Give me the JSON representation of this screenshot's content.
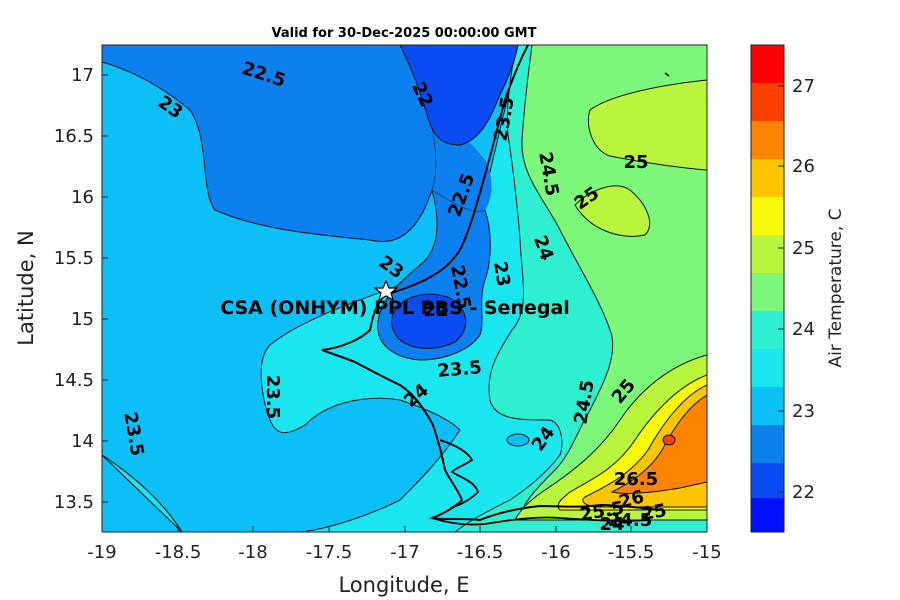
{
  "title": "Valid for 30-Dec-2025 00:00:00 GMT",
  "x_axis_label": "Longitude, E",
  "y_axis_label": "Latitude, N",
  "colorbar_label": "Air Temperature, C",
  "station_label": "CSA (ONHYM) PPL PBS - Senegal",
  "x_ticks": [
    "-19",
    "-18.5",
    "-18",
    "-17.5",
    "-17",
    "-16.5",
    "-16",
    "-15.5",
    "-15"
  ],
  "y_ticks": [
    "17",
    "16.5",
    "16",
    "15.5",
    "15",
    "14.5",
    "14",
    "13.5"
  ],
  "colorbar_ticks": [
    "27",
    "26",
    "25",
    "24",
    "23",
    "22"
  ],
  "colors": {
    "c21_5": "#0010ff",
    "c22": "#0a4cf2",
    "c22_5": "#0b80ee",
    "c23": "#0cc0f7",
    "c23_5": "#1ae6f0",
    "c24": "#2ef0d0",
    "c24_5": "#7cf77a",
    "c25": "#b9f53d",
    "c25_5": "#f7f80c",
    "c26": "#fbc500",
    "c26_5": "#fc8400",
    "c27": "#fb4000",
    "c27_5": "#ff0000"
  },
  "chart_data": {
    "type": "heatmap",
    "title": "Valid for 30-Dec-2025 00:00:00 GMT",
    "xlabel": "Longitude, E",
    "ylabel": "Latitude, N",
    "xlim": [
      -19,
      -15
    ],
    "ylim": [
      13.25,
      17.25
    ],
    "colorbar": {
      "label": "Air Temperature, C",
      "range": [
        21.5,
        27.5
      ],
      "step": 0.5
    },
    "contour_labels": [
      {
        "text": "22.5",
        "lon": -18.05,
        "lat": 16.95
      },
      {
        "text": "23",
        "lon": -18.6,
        "lat": 16.72
      },
      {
        "text": "22",
        "lon": -16.9,
        "lat": 16.82
      },
      {
        "text": "23.5",
        "lon": -16.28,
        "lat": 16.72
      },
      {
        "text": "25",
        "lon": -15.48,
        "lat": 16.3
      },
      {
        "text": "24.5",
        "lon": -16.1,
        "lat": 16.18
      },
      {
        "text": "25",
        "lon": -15.76,
        "lat": 16.0
      },
      {
        "text": "22.5",
        "lon": -16.57,
        "lat": 15.98
      },
      {
        "text": "24",
        "lon": -16.1,
        "lat": 15.57
      },
      {
        "text": "23",
        "lon": -17.28,
        "lat": 15.42
      },
      {
        "text": "23",
        "lon": -16.38,
        "lat": 15.37
      },
      {
        "text": "22.5",
        "lon": -16.62,
        "lat": 15.28
      },
      {
        "text": "22",
        "lon": -16.8,
        "lat": 15.08
      },
      {
        "text": "23.5",
        "lon": -16.62,
        "lat": 14.6
      },
      {
        "text": "23.5",
        "lon": -17.95,
        "lat": 14.35
      },
      {
        "text": "24",
        "lon": -16.92,
        "lat": 14.35
      },
      {
        "text": "24.5",
        "lon": -15.75,
        "lat": 14.35
      },
      {
        "text": "25",
        "lon": -15.55,
        "lat": 14.4
      },
      {
        "text": "23.5",
        "lon": -18.8,
        "lat": 14.05
      },
      {
        "text": "24",
        "lon": -16.02,
        "lat": 13.98
      },
      {
        "text": "26.5",
        "lon": -15.47,
        "lat": 13.77
      },
      {
        "text": "26",
        "lon": -15.47,
        "lat": 13.6
      },
      {
        "text": "25.5",
        "lon": -15.74,
        "lat": 13.5
      },
      {
        "text": "25",
        "lon": -15.33,
        "lat": 13.5
      },
      {
        "text": "24",
        "lon": -15.7,
        "lat": 13.4
      },
      {
        "text": "24.5",
        "lon": -15.6,
        "lat": 13.42
      }
    ],
    "station": {
      "name": "CSA (ONHYM) PPL PBS - Senegal",
      "lon": -17.13,
      "lat": 15.23
    }
  }
}
